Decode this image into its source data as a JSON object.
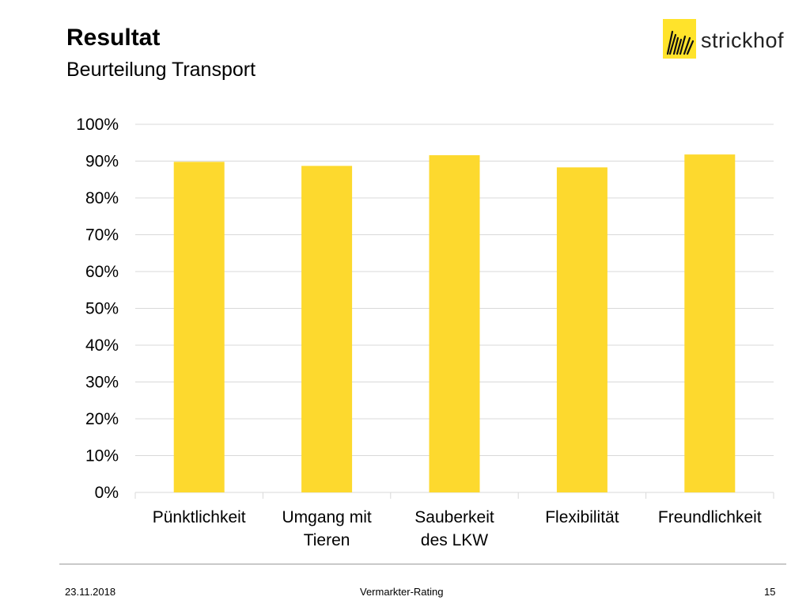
{
  "slide": {
    "title": "Resultat",
    "subtitle": "Beurteilung Transport"
  },
  "logo": {
    "text": "strickhof",
    "mark_color": "#ffe32b"
  },
  "footer": {
    "date": "23.11.2018",
    "center": "Vermarkter-Rating",
    "page": "15"
  },
  "chart_data": {
    "type": "bar",
    "categories": [
      [
        "Pünktlichkeit"
      ],
      [
        "Umgang mit",
        "Tieren"
      ],
      [
        "Sauberkeit",
        "des LKW"
      ],
      [
        "Flexibilität"
      ],
      [
        "Freundlichkeit"
      ]
    ],
    "values": [
      0.898,
      0.887,
      0.916,
      0.883,
      0.918
    ],
    "ylim": [
      0,
      1
    ],
    "yticks": [
      0,
      0.1,
      0.2,
      0.3,
      0.4,
      0.5,
      0.6,
      0.7,
      0.8,
      0.9,
      1.0
    ],
    "ytick_labels": [
      "0%",
      "10%",
      "20%",
      "30%",
      "40%",
      "50%",
      "60%",
      "70%",
      "80%",
      "90%",
      "100%"
    ],
    "title": "",
    "xlabel": "",
    "ylabel": "",
    "grid": true,
    "bar_color": "#fdd92e",
    "grid_color": "#d9d9d9"
  }
}
